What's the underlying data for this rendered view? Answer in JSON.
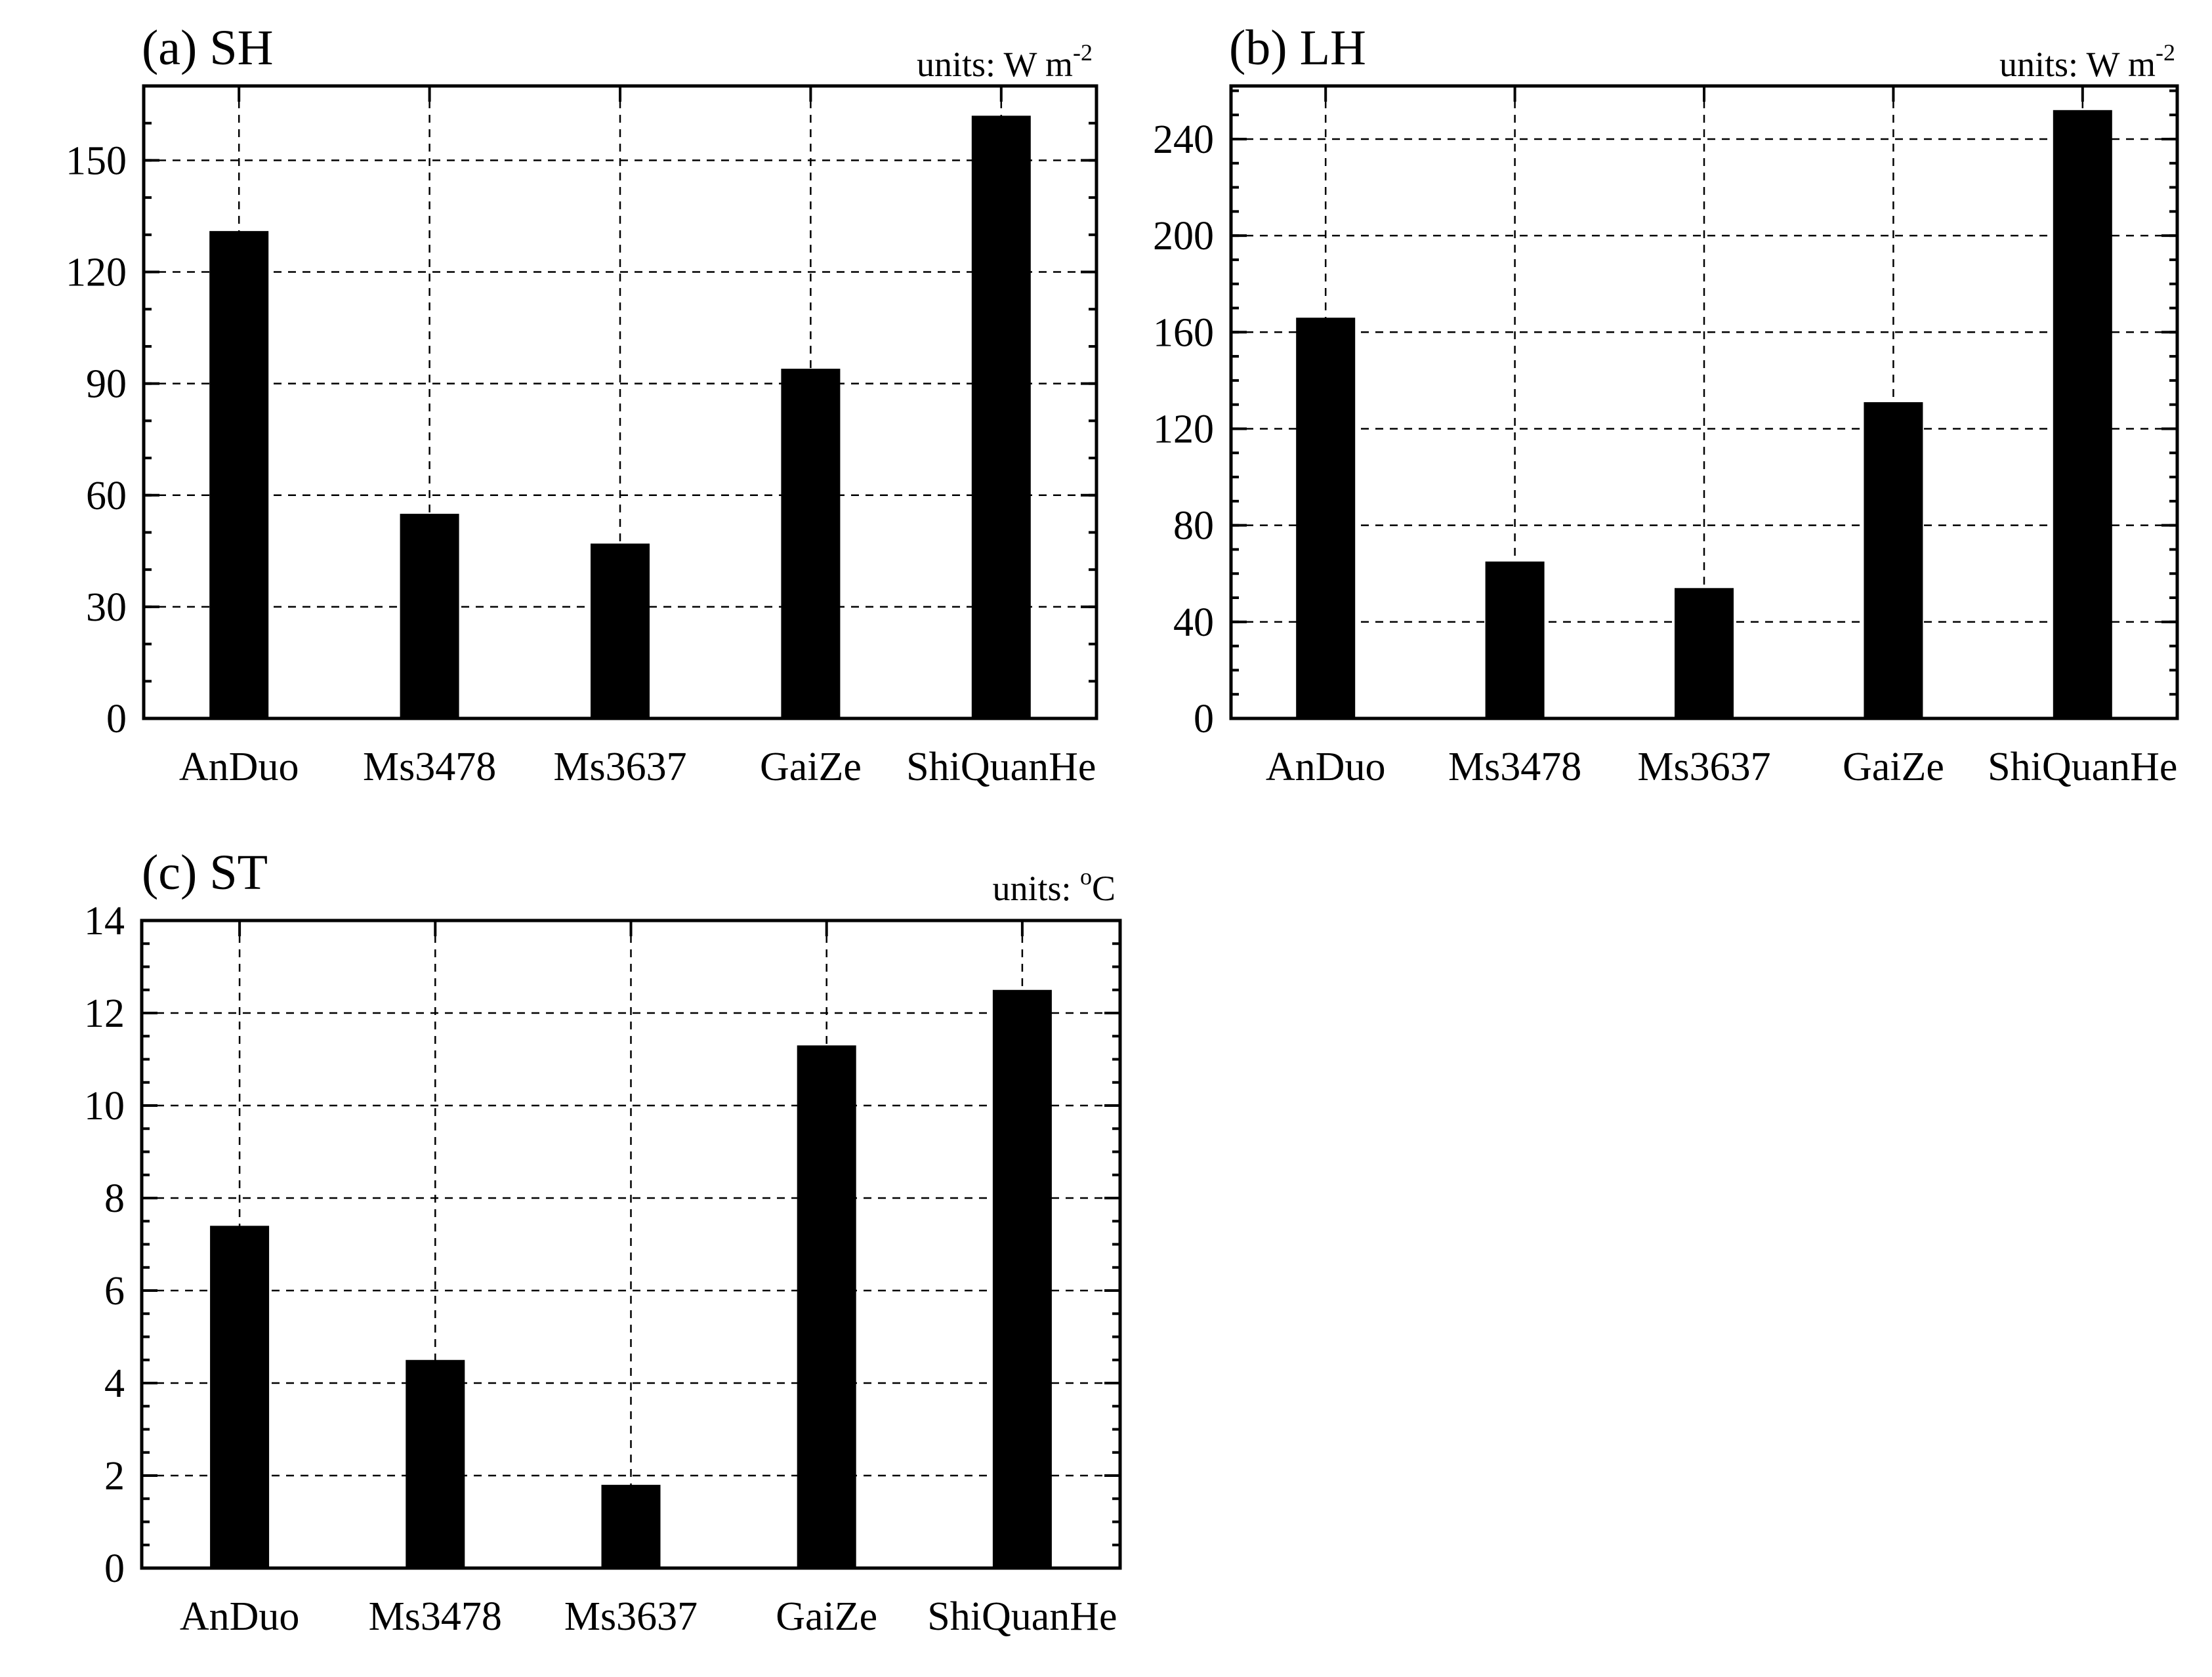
{
  "chart_data": [
    {
      "type": "bar",
      "title": "(a) SH",
      "units_prefix": "units: W m",
      "units_sup": "-2",
      "units_suffix": "",
      "categories": [
        "AnDuo",
        "Ms3478",
        "Ms3637",
        "GaiZe",
        "ShiQuanHe"
      ],
      "values": [
        131,
        55,
        47,
        94,
        162
      ],
      "ylim": [
        0,
        170
      ],
      "yticks": [
        0,
        30,
        60,
        90,
        120,
        150
      ],
      "ytick_labels": [
        "0",
        "30",
        "60",
        "90",
        "120",
        "150"
      ],
      "minor_step": 10,
      "grid": true,
      "bar_color": "#000000"
    },
    {
      "type": "bar",
      "title": "(b) LH",
      "units_prefix": "units: W m",
      "units_sup": "-2",
      "units_suffix": "",
      "categories": [
        "AnDuo",
        "Ms3478",
        "Ms3637",
        "GaiZe",
        "ShiQuanHe"
      ],
      "values": [
        166,
        65,
        54,
        131,
        252
      ],
      "ylim": [
        0,
        262
      ],
      "yticks": [
        0,
        40,
        80,
        120,
        160,
        200,
        240
      ],
      "ytick_labels": [
        "0",
        "40",
        "80",
        "120",
        "160",
        "200",
        "240"
      ],
      "minor_step": 10,
      "grid": true,
      "bar_color": "#000000"
    },
    {
      "type": "bar",
      "title": "(c) ST",
      "units_prefix": "units: ",
      "units_sup": "o",
      "units_suffix": "C",
      "categories": [
        "AnDuo",
        "Ms3478",
        "Ms3637",
        "GaiZe",
        "ShiQuanHe"
      ],
      "values": [
        7.4,
        4.5,
        1.8,
        11.3,
        12.5
      ],
      "ylim": [
        0,
        14
      ],
      "yticks": [
        0,
        2,
        4,
        6,
        8,
        10,
        12,
        14
      ],
      "ytick_labels": [
        "0",
        "2",
        "4",
        "6",
        "8",
        "10",
        "12",
        "14"
      ],
      "minor_step": 0.5,
      "grid": true,
      "bar_color": "#000000"
    }
  ]
}
